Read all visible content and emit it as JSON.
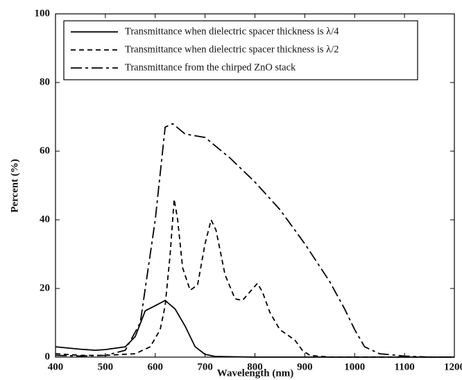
{
  "chart_data": {
    "type": "line",
    "xlabel": "Wavelength (nm)",
    "ylabel": "Percent (%)",
    "xlim": [
      400,
      1200
    ],
    "xticks": [
      400,
      500,
      600,
      700,
      800,
      900,
      1000,
      1100,
      1200
    ],
    "ylim": [
      0,
      100
    ],
    "yticks": [
      0,
      20,
      40,
      60,
      80,
      100
    ],
    "legend": "upper left",
    "series": [
      {
        "name": "Transmittance when dielectric spacer thickness is λ/4",
        "color": "#000000",
        "linestyle": "solid",
        "x": [
          400,
          450,
          480,
          500,
          540,
          560,
          580,
          600,
          620,
          640,
          660,
          680,
          700,
          720,
          800,
          1200
        ],
        "values": [
          3,
          2.3,
          2,
          2.2,
          3,
          6,
          13.5,
          15,
          16.5,
          14,
          9,
          3,
          0.8,
          0.2,
          0,
          0
        ]
      },
      {
        "name": "Transmittance when dielectric spacer thickness is λ/2",
        "color": "#000000",
        "linestyle": "dashed",
        "x": [
          400,
          450,
          500,
          560,
          590,
          610,
          620,
          630,
          638,
          645,
          655,
          670,
          685,
          700,
          712,
          722,
          740,
          760,
          775,
          790,
          805,
          815,
          830,
          850,
          880,
          895,
          910,
          950,
          1200
        ],
        "values": [
          1,
          0.5,
          0.5,
          1,
          3,
          8,
          15,
          30,
          46,
          40,
          26,
          19.5,
          21,
          33,
          40,
          37,
          24,
          17,
          16.5,
          19,
          21.5,
          19,
          13,
          8,
          5,
          2,
          0.5,
          0,
          0
        ]
      },
      {
        "name": "Transmittance from the chirped ZnO stack",
        "color": "#000000",
        "linestyle": "dashdot",
        "x": [
          400,
          450,
          500,
          540,
          570,
          600,
          620,
          635,
          660,
          700,
          750,
          800,
          850,
          900,
          950,
          980,
          1000,
          1020,
          1050,
          1100,
          1150,
          1200
        ],
        "values": [
          0.5,
          0.3,
          0.5,
          2,
          10,
          40,
          67,
          68,
          65,
          64,
          58,
          51,
          43,
          33,
          22,
          14,
          8,
          3,
          1,
          0.3,
          0,
          0
        ]
      }
    ]
  }
}
